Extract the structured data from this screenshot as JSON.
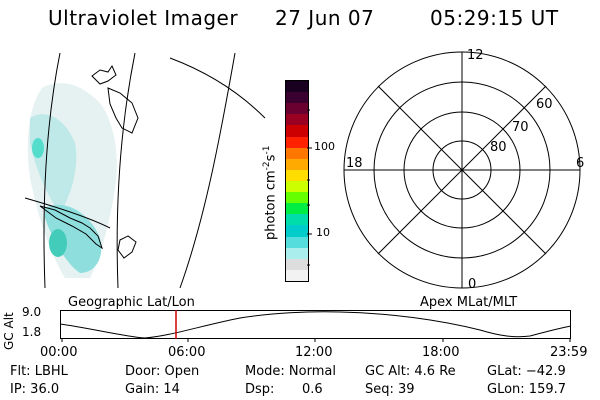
{
  "header": {
    "title": "Ultraviolet Imager",
    "date": "27 Jun 07",
    "time": "05:29:15 UT"
  },
  "colorbar": {
    "label": "photon cm",
    "exp1": "-2",
    "mid": "s",
    "exp2": "-1",
    "tick_high": "100",
    "tick_low": "10",
    "colors": [
      "#1a0020",
      "#3a0030",
      "#6a0030",
      "#990022",
      "#cc0000",
      "#ff2200",
      "#ff7700",
      "#ffaa00",
      "#ffdd00",
      "#ccff00",
      "#66ff00",
      "#00ee44",
      "#00ddaa",
      "#00cccc",
      "#55dddd",
      "#aaeeee",
      "#dddddd",
      "#f2f2f2"
    ]
  },
  "polar": {
    "label_12": "12",
    "label_18": "18",
    "label_6": "6",
    "label_0": "0",
    "lat_60": "60",
    "lat_70": "70",
    "lat_80": "80"
  },
  "timeline": {
    "left_label": "Geographic Lat/Lon",
    "right_label": "Apex MLat/MLT",
    "axis_title": "GC Alt",
    "y_high": "9.0",
    "y_low": "1.8",
    "ticks": [
      "00:00",
      "06:00",
      "12:00",
      "18:00",
      "23:59"
    ],
    "marker_color": "#cc0000"
  },
  "info": {
    "flt": "Flt: LBHL",
    "door": "Door: Open",
    "mode": "Mode: Normal",
    "gcalt": "GC Alt: 4.6 Re",
    "glat": "GLat: −42.9",
    "ip": "IP: 36.0",
    "gain": "Gain: 14",
    "dsp_label": "Dsp:",
    "dsp_value": "0.6",
    "seq": "Seq: 39",
    "glon": "GLon: 159.7"
  }
}
